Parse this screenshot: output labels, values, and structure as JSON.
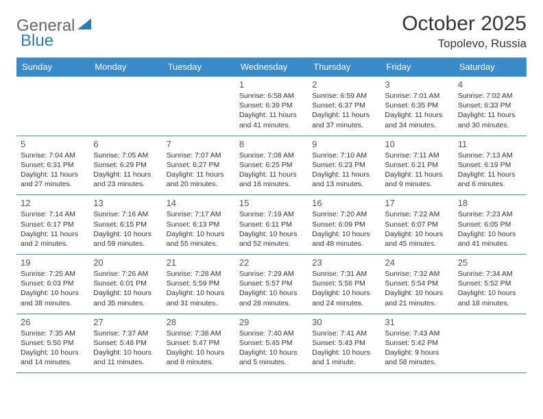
{
  "logo": {
    "text1": "General",
    "text2": "Blue"
  },
  "title": "October 2025",
  "subtitle": "Topolevo, Russia",
  "colors": {
    "header_bg": "#3a8bc9",
    "header_fg": "#ffffff",
    "border": "#3a8bc9",
    "logo_gray": "#666666",
    "logo_blue": "#2a7ab8"
  },
  "day_headers": [
    "Sunday",
    "Monday",
    "Tuesday",
    "Wednesday",
    "Thursday",
    "Friday",
    "Saturday"
  ],
  "weeks": [
    [
      null,
      null,
      null,
      {
        "n": "1",
        "sr": "6:58 AM",
        "ss": "6:39 PM",
        "dl": "11 hours and 41 minutes."
      },
      {
        "n": "2",
        "sr": "6:59 AM",
        "ss": "6:37 PM",
        "dl": "11 hours and 37 minutes."
      },
      {
        "n": "3",
        "sr": "7:01 AM",
        "ss": "6:35 PM",
        "dl": "11 hours and 34 minutes."
      },
      {
        "n": "4",
        "sr": "7:02 AM",
        "ss": "6:33 PM",
        "dl": "11 hours and 30 minutes."
      }
    ],
    [
      {
        "n": "5",
        "sr": "7:04 AM",
        "ss": "6:31 PM",
        "dl": "11 hours and 27 minutes."
      },
      {
        "n": "6",
        "sr": "7:05 AM",
        "ss": "6:29 PM",
        "dl": "11 hours and 23 minutes."
      },
      {
        "n": "7",
        "sr": "7:07 AM",
        "ss": "6:27 PM",
        "dl": "11 hours and 20 minutes."
      },
      {
        "n": "8",
        "sr": "7:08 AM",
        "ss": "6:25 PM",
        "dl": "11 hours and 16 minutes."
      },
      {
        "n": "9",
        "sr": "7:10 AM",
        "ss": "6:23 PM",
        "dl": "11 hours and 13 minutes."
      },
      {
        "n": "10",
        "sr": "7:11 AM",
        "ss": "6:21 PM",
        "dl": "11 hours and 9 minutes."
      },
      {
        "n": "11",
        "sr": "7:13 AM",
        "ss": "6:19 PM",
        "dl": "11 hours and 6 minutes."
      }
    ],
    [
      {
        "n": "12",
        "sr": "7:14 AM",
        "ss": "6:17 PM",
        "dl": "11 hours and 2 minutes."
      },
      {
        "n": "13",
        "sr": "7:16 AM",
        "ss": "6:15 PM",
        "dl": "10 hours and 59 minutes."
      },
      {
        "n": "14",
        "sr": "7:17 AM",
        "ss": "6:13 PM",
        "dl": "10 hours and 55 minutes."
      },
      {
        "n": "15",
        "sr": "7:19 AM",
        "ss": "6:11 PM",
        "dl": "10 hours and 52 minutes."
      },
      {
        "n": "16",
        "sr": "7:20 AM",
        "ss": "6:09 PM",
        "dl": "10 hours and 48 minutes."
      },
      {
        "n": "17",
        "sr": "7:22 AM",
        "ss": "6:07 PM",
        "dl": "10 hours and 45 minutes."
      },
      {
        "n": "18",
        "sr": "7:23 AM",
        "ss": "6:05 PM",
        "dl": "10 hours and 41 minutes."
      }
    ],
    [
      {
        "n": "19",
        "sr": "7:25 AM",
        "ss": "6:03 PM",
        "dl": "10 hours and 38 minutes."
      },
      {
        "n": "20",
        "sr": "7:26 AM",
        "ss": "6:01 PM",
        "dl": "10 hours and 35 minutes."
      },
      {
        "n": "21",
        "sr": "7:28 AM",
        "ss": "5:59 PM",
        "dl": "10 hours and 31 minutes."
      },
      {
        "n": "22",
        "sr": "7:29 AM",
        "ss": "5:57 PM",
        "dl": "10 hours and 28 minutes."
      },
      {
        "n": "23",
        "sr": "7:31 AM",
        "ss": "5:56 PM",
        "dl": "10 hours and 24 minutes."
      },
      {
        "n": "24",
        "sr": "7:32 AM",
        "ss": "5:54 PM",
        "dl": "10 hours and 21 minutes."
      },
      {
        "n": "25",
        "sr": "7:34 AM",
        "ss": "5:52 PM",
        "dl": "10 hours and 18 minutes."
      }
    ],
    [
      {
        "n": "26",
        "sr": "7:35 AM",
        "ss": "5:50 PM",
        "dl": "10 hours and 14 minutes."
      },
      {
        "n": "27",
        "sr": "7:37 AM",
        "ss": "5:48 PM",
        "dl": "10 hours and 11 minutes."
      },
      {
        "n": "28",
        "sr": "7:38 AM",
        "ss": "5:47 PM",
        "dl": "10 hours and 8 minutes."
      },
      {
        "n": "29",
        "sr": "7:40 AM",
        "ss": "5:45 PM",
        "dl": "10 hours and 5 minutes."
      },
      {
        "n": "30",
        "sr": "7:41 AM",
        "ss": "5:43 PM",
        "dl": "10 hours and 1 minute."
      },
      {
        "n": "31",
        "sr": "7:43 AM",
        "ss": "5:42 PM",
        "dl": "9 hours and 58 minutes."
      },
      null
    ]
  ],
  "labels": {
    "sunrise": "Sunrise:",
    "sunset": "Sunset:",
    "daylight": "Daylight:"
  }
}
